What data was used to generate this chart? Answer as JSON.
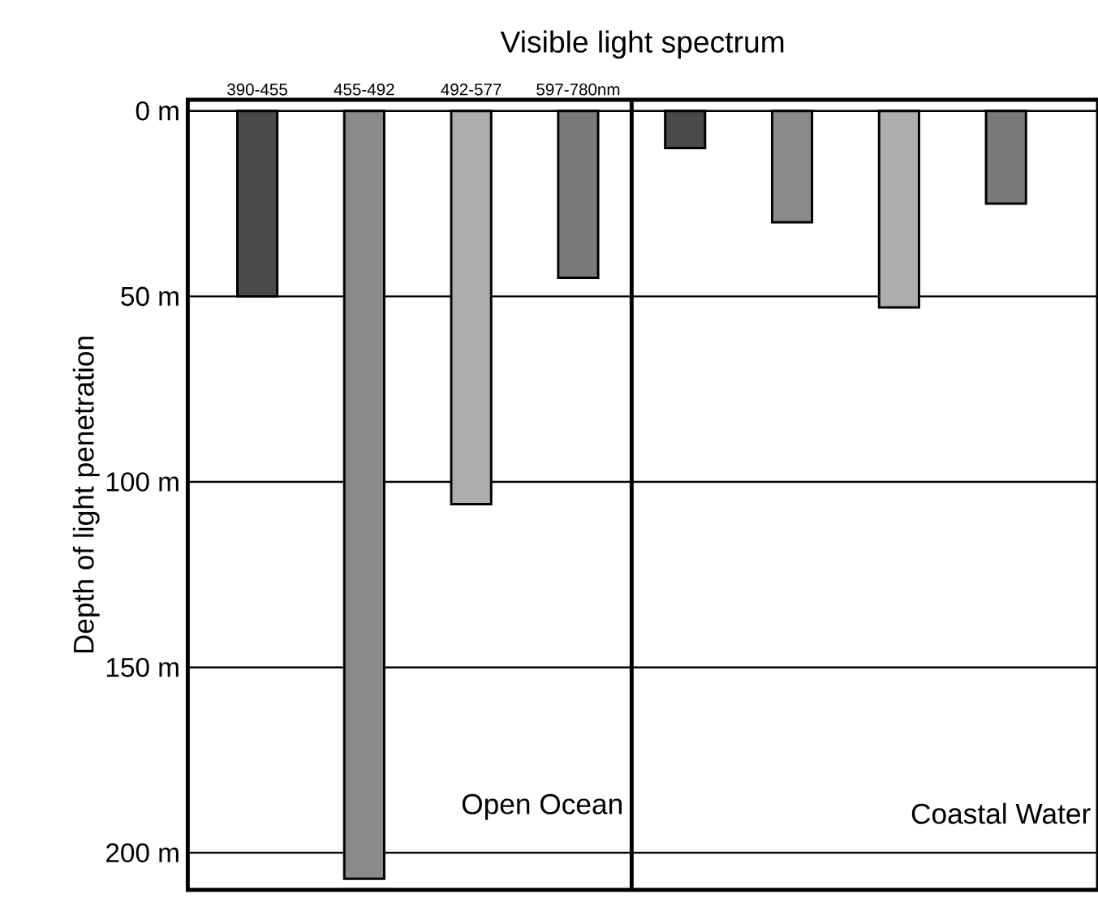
{
  "chart_data": {
    "type": "bar",
    "title": "Visible light spectrum",
    "ylabel": "Depth of light penetration",
    "categories": [
      "390-455",
      "455-492",
      "492-577",
      "597-780nm",
      null,
      null,
      null,
      null
    ],
    "values": [
      50,
      207,
      106,
      45,
      10,
      30,
      53,
      25
    ],
    "colors": [
      "#4a4a4a",
      "#8a8a8a",
      "#adadad",
      "#7a7a7a",
      "#4a4a4a",
      "#8a8a8a",
      "#adadad",
      "#7a7a7a"
    ],
    "ylim": [
      210,
      -3
    ],
    "yticks": [
      {
        "value": 0,
        "label": "0 m"
      },
      {
        "value": 50,
        "label": "50 m"
      },
      {
        "value": 100,
        "label": "100 m"
      },
      {
        "value": 150,
        "label": "150 m"
      },
      {
        "value": 200,
        "label": "200 m"
      }
    ],
    "grid": "y",
    "annotations": [
      "Open Ocean",
      "Coastal Water"
    ]
  }
}
